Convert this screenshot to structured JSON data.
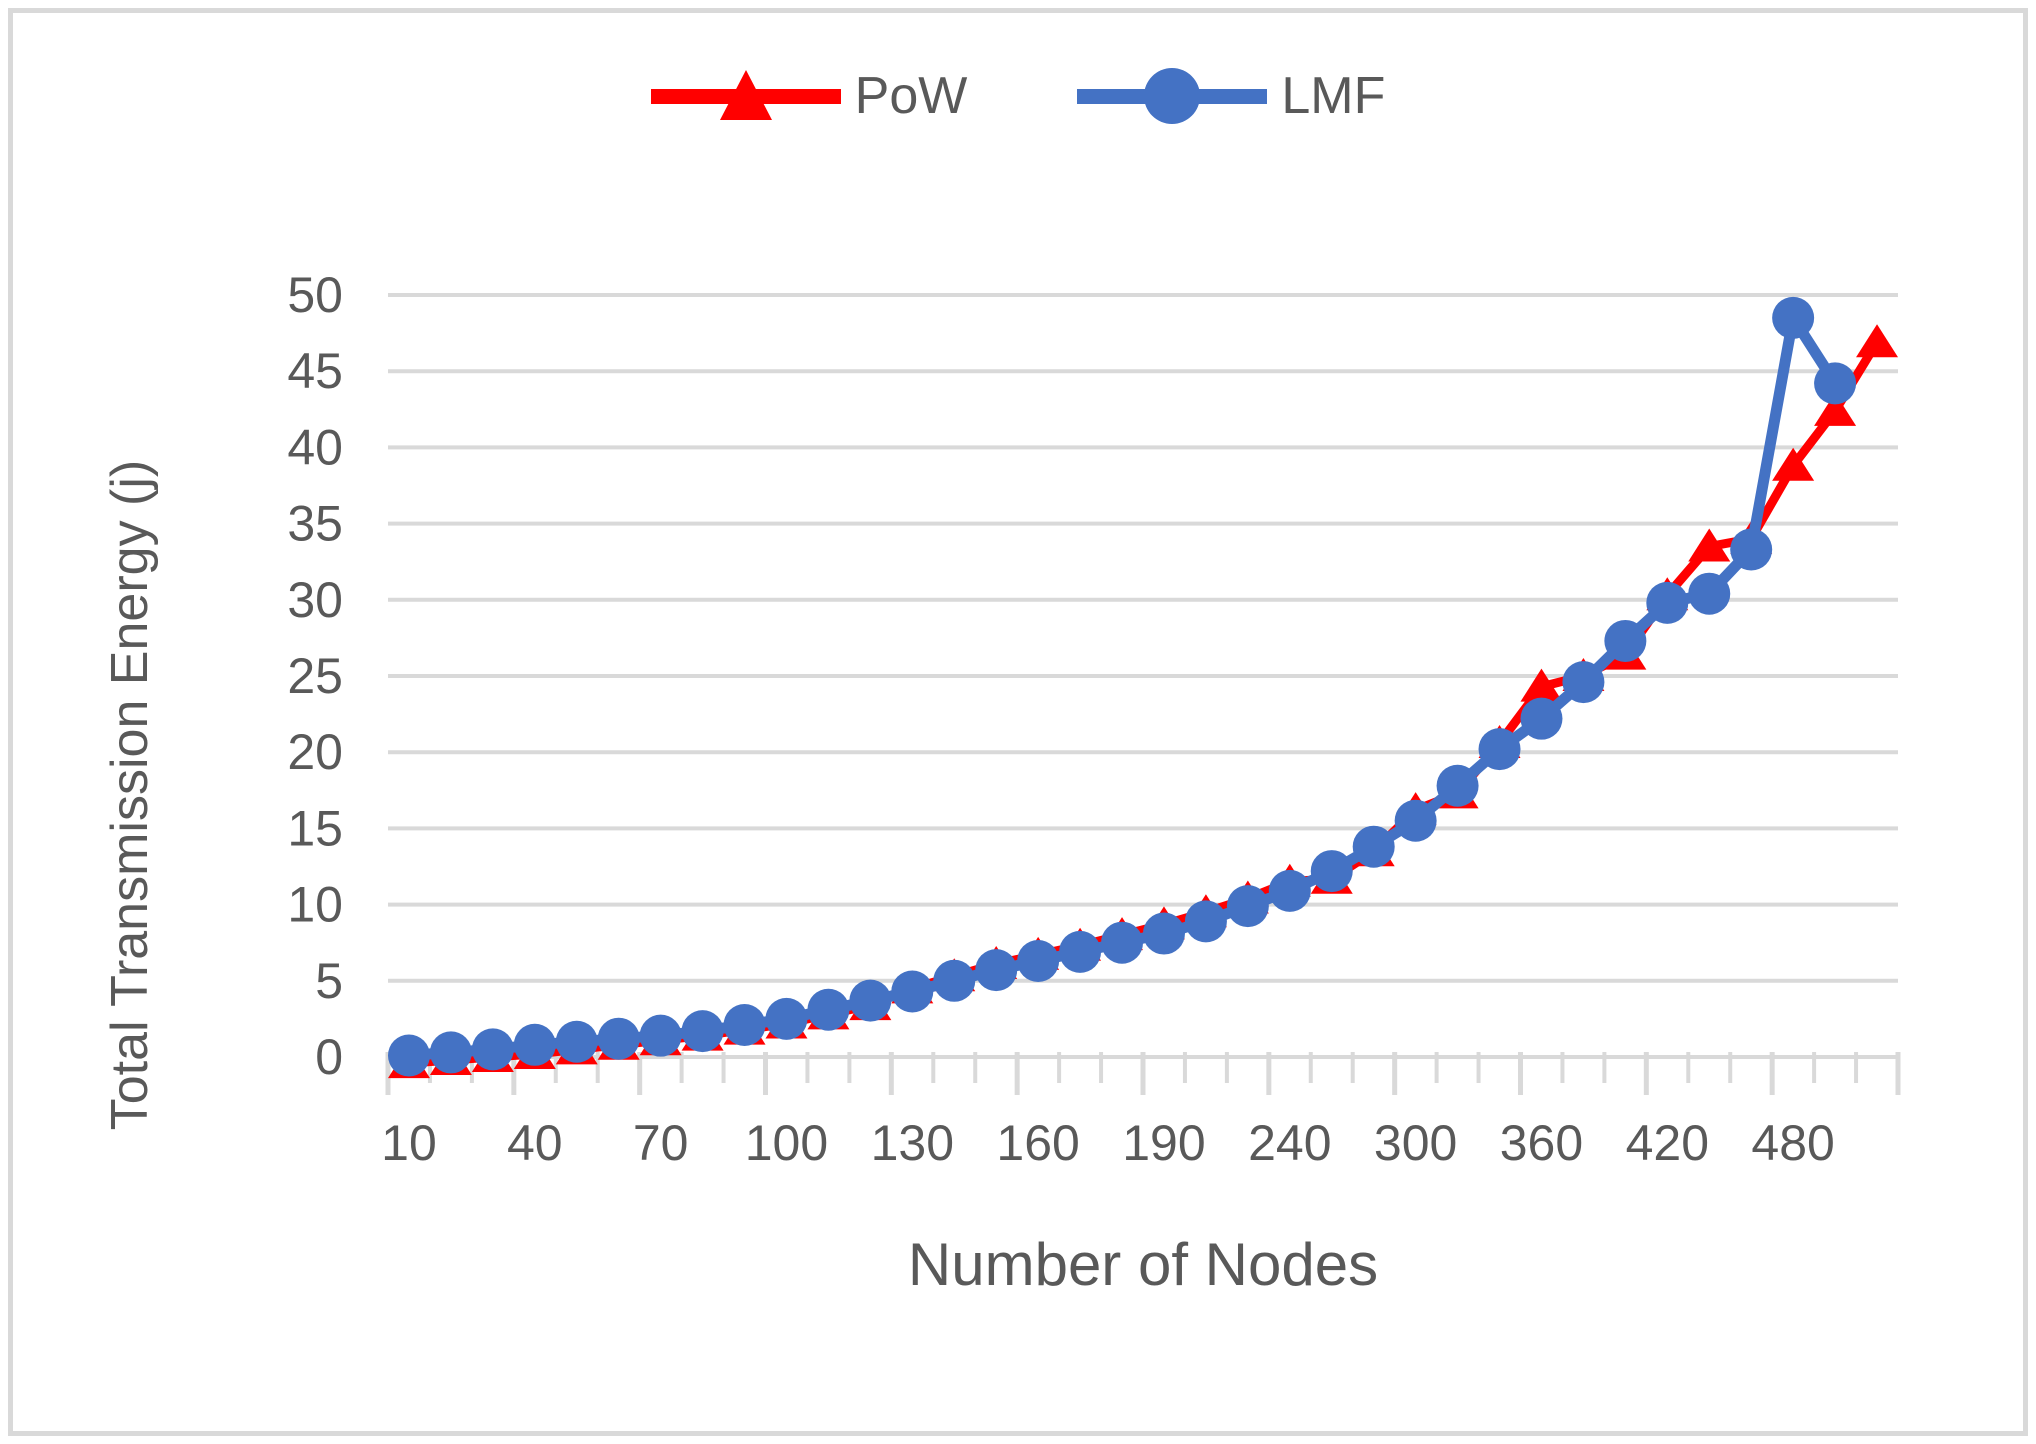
{
  "chart_data": {
    "type": "line",
    "title": "",
    "xlabel": "Number of Nodes",
    "ylabel": "Total Transmission Energy (j)",
    "categories": [
      10,
      20,
      30,
      40,
      50,
      60,
      70,
      80,
      90,
      100,
      110,
      120,
      130,
      140,
      150,
      160,
      170,
      180,
      190,
      200,
      220,
      240,
      260,
      280,
      300,
      320,
      340,
      360,
      380,
      400,
      420,
      440,
      460,
      480,
      500,
      520
    ],
    "x_tick_labels_shown": [
      10,
      40,
      70,
      100,
      130,
      160,
      190,
      240,
      300,
      360,
      420,
      480
    ],
    "label_every": 3,
    "y_ticks": [
      0,
      5,
      10,
      15,
      20,
      25,
      30,
      35,
      40,
      45,
      50
    ],
    "ylim": [
      0,
      50
    ],
    "grid": "horizontal",
    "gridline_color": "#d9d9d9",
    "legend_position": "top",
    "series": [
      {
        "name": "PoW",
        "color": "#ff0000",
        "marker": "triangle",
        "values": [
          -0.4,
          -0.2,
          0.0,
          0.2,
          0.5,
          0.8,
          1.1,
          1.4,
          1.8,
          2.2,
          2.8,
          3.4,
          4.5,
          5.3,
          6.1,
          6.7,
          7.3,
          8.0,
          8.7,
          9.5,
          10.4,
          11.5,
          11.7,
          13.5,
          16.2,
          17.3,
          20.6,
          24.3,
          25.0,
          26.4,
          30.3,
          33.5,
          34.0,
          38.8,
          42.4,
          46.9
        ]
      },
      {
        "name": "LMF",
        "color": "#4472c4",
        "marker": "circle",
        "values": [
          0.1,
          0.3,
          0.5,
          0.8,
          1.0,
          1.2,
          1.4,
          1.7,
          2.1,
          2.5,
          3.1,
          3.7,
          4.3,
          5.0,
          5.7,
          6.3,
          6.9,
          7.5,
          8.1,
          8.9,
          9.9,
          10.9,
          12.2,
          13.8,
          15.5,
          17.8,
          20.2,
          22.2,
          24.6,
          27.3,
          29.8,
          30.4,
          33.3,
          48.5,
          44.2,
          null
        ]
      }
    ]
  },
  "legend": {
    "items": [
      {
        "label": "PoW"
      },
      {
        "label": "LMF"
      }
    ]
  },
  "colors": {
    "text": "#595959",
    "grid": "#d9d9d9",
    "pow": "#ff0000",
    "lmf": "#4472c4",
    "border": "#d9d9d9"
  }
}
